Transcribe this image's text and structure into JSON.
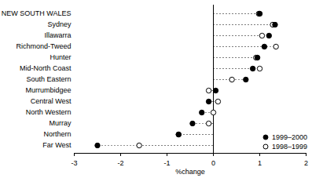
{
  "chart_data": {
    "type": "dot",
    "orientation": "horizontal",
    "legend": "bottom-right",
    "x_label": "%change",
    "categories": [
      "NEW SOUTH WALES",
      "Sydney",
      "Illawarra",
      "Richmond-Tweed",
      "Hunter",
      "Mid-North Coast",
      "South Eastern",
      "Murrumbidgee",
      "Central West",
      "North Western",
      "Murray",
      "Northern",
      "Far West"
    ],
    "series": [
      {
        "name": "1999–2000",
        "color": "#000000",
        "marker": "filled_circle",
        "values": [
          1.0,
          1.33,
          1.2,
          1.1,
          0.95,
          0.85,
          0.7,
          0.05,
          -0.1,
          -0.25,
          -0.45,
          -0.75,
          -2.5
        ]
      },
      {
        "name": "1998–1999",
        "color": "#000000",
        "marker": "open_circle",
        "values": [
          0.98,
          1.28,
          1.05,
          1.35,
          0.92,
          1.0,
          0.4,
          -0.1,
          0.1,
          0.0,
          -0.1,
          -0.75,
          -1.6
        ]
      }
    ],
    "xlim": [
      -3,
      2
    ],
    "xticks": [
      -3,
      -2,
      -1,
      0,
      1,
      2
    ],
    "grid": false
  }
}
